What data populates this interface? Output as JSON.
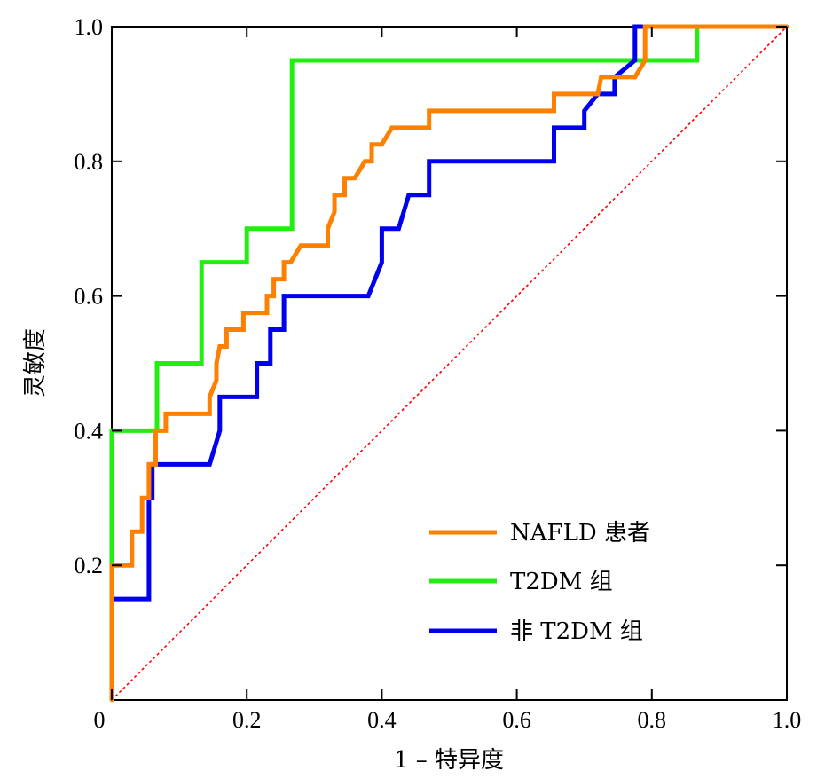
{
  "chart_data": {
    "type": "line",
    "title": "",
    "xlabel": "1 – 特异度",
    "ylabel": "灵敏度",
    "xlim": [
      0,
      1
    ],
    "ylim": [
      0,
      1
    ],
    "x_ticks": [
      "0",
      "0.2",
      "0.4",
      "0.6",
      "0.8",
      "1.0"
    ],
    "y_ticks": [
      "0.2",
      "0.4",
      "0.6",
      "0.8",
      "1.0"
    ],
    "grid": false,
    "legend_position": "bottom-right",
    "reference_line": {
      "from": [
        0,
        0
      ],
      "to": [
        1,
        1
      ],
      "color": "#ff0000",
      "style": "dotted"
    },
    "series": [
      {
        "name": "NAFLD 患者",
        "color": "#ff8000",
        "points": [
          [
            0,
            0
          ],
          [
            0,
            0.2
          ],
          [
            0.03,
            0.2
          ],
          [
            0.03,
            0.25
          ],
          [
            0.045,
            0.25
          ],
          [
            0.045,
            0.3
          ],
          [
            0.055,
            0.3
          ],
          [
            0.055,
            0.35
          ],
          [
            0.065,
            0.35
          ],
          [
            0.065,
            0.4
          ],
          [
            0.08,
            0.4
          ],
          [
            0.08,
            0.425
          ],
          [
            0.145,
            0.425
          ],
          [
            0.145,
            0.45
          ],
          [
            0.155,
            0.475
          ],
          [
            0.155,
            0.5
          ],
          [
            0.16,
            0.525
          ],
          [
            0.17,
            0.525
          ],
          [
            0.17,
            0.55
          ],
          [
            0.195,
            0.55
          ],
          [
            0.195,
            0.575
          ],
          [
            0.23,
            0.575
          ],
          [
            0.23,
            0.6
          ],
          [
            0.24,
            0.6
          ],
          [
            0.24,
            0.625
          ],
          [
            0.255,
            0.625
          ],
          [
            0.255,
            0.65
          ],
          [
            0.265,
            0.65
          ],
          [
            0.28,
            0.675
          ],
          [
            0.32,
            0.675
          ],
          [
            0.32,
            0.7
          ],
          [
            0.33,
            0.725
          ],
          [
            0.33,
            0.75
          ],
          [
            0.345,
            0.75
          ],
          [
            0.345,
            0.775
          ],
          [
            0.36,
            0.775
          ],
          [
            0.375,
            0.8
          ],
          [
            0.385,
            0.8
          ],
          [
            0.385,
            0.825
          ],
          [
            0.4,
            0.825
          ],
          [
            0.415,
            0.85
          ],
          [
            0.47,
            0.85
          ],
          [
            0.47,
            0.875
          ],
          [
            0.655,
            0.875
          ],
          [
            0.655,
            0.9
          ],
          [
            0.72,
            0.9
          ],
          [
            0.725,
            0.925
          ],
          [
            0.775,
            0.925
          ],
          [
            0.79,
            0.95
          ],
          [
            0.79,
            1.0
          ],
          [
            1.0,
            1.0
          ]
        ]
      },
      {
        "name": "T2DM 组",
        "color": "#22ee11",
        "points": [
          [
            0,
            0
          ],
          [
            0,
            0.4
          ],
          [
            0.067,
            0.4
          ],
          [
            0.067,
            0.5
          ],
          [
            0.133,
            0.5
          ],
          [
            0.133,
            0.65
          ],
          [
            0.2,
            0.65
          ],
          [
            0.2,
            0.7
          ],
          [
            0.267,
            0.7
          ],
          [
            0.267,
            0.95
          ],
          [
            0.867,
            0.95
          ],
          [
            0.867,
            1.0
          ],
          [
            1.0,
            1.0
          ]
        ]
      },
      {
        "name": "非 T2DM 组",
        "color": "#0000ee",
        "points": [
          [
            0,
            0
          ],
          [
            0,
            0.15
          ],
          [
            0.055,
            0.15
          ],
          [
            0.055,
            0.3
          ],
          [
            0.06,
            0.3
          ],
          [
            0.06,
            0.35
          ],
          [
            0.145,
            0.35
          ],
          [
            0.16,
            0.4
          ],
          [
            0.16,
            0.45
          ],
          [
            0.215,
            0.45
          ],
          [
            0.215,
            0.5
          ],
          [
            0.235,
            0.5
          ],
          [
            0.235,
            0.55
          ],
          [
            0.255,
            0.55
          ],
          [
            0.255,
            0.6
          ],
          [
            0.38,
            0.6
          ],
          [
            0.4,
            0.65
          ],
          [
            0.4,
            0.7
          ],
          [
            0.425,
            0.7
          ],
          [
            0.44,
            0.75
          ],
          [
            0.47,
            0.75
          ],
          [
            0.47,
            0.8
          ],
          [
            0.655,
            0.8
          ],
          [
            0.655,
            0.85
          ],
          [
            0.7,
            0.85
          ],
          [
            0.7,
            0.875
          ],
          [
            0.72,
            0.9
          ],
          [
            0.745,
            0.9
          ],
          [
            0.745,
            0.925
          ],
          [
            0.775,
            0.95
          ],
          [
            0.775,
            1.0
          ],
          [
            1.0,
            1.0
          ]
        ]
      }
    ]
  }
}
